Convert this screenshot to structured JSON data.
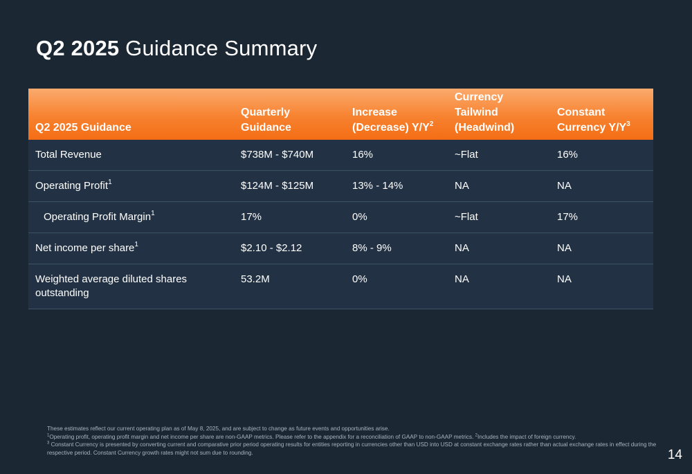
{
  "title": {
    "bold": "Q2 2025",
    "rest": " Guidance Summary"
  },
  "table": {
    "headers": [
      {
        "line1": "",
        "line2": "",
        "line3": "Q2 2025 Guidance",
        "sup": ""
      },
      {
        "line1": "",
        "line2": "Quarterly",
        "line3": "Guidance",
        "sup": ""
      },
      {
        "line1": "",
        "line2": "Increase",
        "line3": "(Decrease) Y/Y",
        "sup": "2"
      },
      {
        "line1": "Currency",
        "line2": "Tailwind",
        "line3": "(Headwind)",
        "sup": ""
      },
      {
        "line1": "",
        "line2": "Constant",
        "line3": "Currency Y/Y",
        "sup": "3"
      }
    ],
    "rows": [
      {
        "label": "Total Revenue",
        "label_sup": "",
        "guidance": "$738M - $740M",
        "change": "16%",
        "currency": "~Flat",
        "constant": "16%"
      },
      {
        "label": "Operating Profit",
        "label_sup": "1",
        "guidance": "$124M - $125M",
        "change": "13% - 14%",
        "currency": "NA",
        "constant": "NA"
      },
      {
        "label": "Operating Profit Margin",
        "label_sup": "1",
        "guidance": "17%",
        "change": "0%",
        "currency": "~Flat",
        "constant": "17%"
      },
      {
        "label": "Net income per share",
        "label_sup": "1",
        "guidance": "$2.10 - $2.12",
        "change": "8% - 9%",
        "currency": "NA",
        "constant": "NA"
      },
      {
        "label": "Weighted average diluted shares outstanding",
        "label_sup": "",
        "guidance": "53.2M",
        "change": "0%",
        "currency": "NA",
        "constant": "NA"
      }
    ]
  },
  "footnotes": {
    "intro": "These estimates reflect our current operating plan as of May 8, 2025, and are subject to change as future events and opportunities arise.",
    "note1_mark": "1",
    "note1": "Operating profit, operating profit margin and net income per share are non-GAAP metrics. Please refer to the appendix for a reconciliation of GAAP to non-GAAP metrics. ",
    "note2_mark": "2",
    "note2": "Includes the impact of foreign currency.",
    "note3_mark": "3",
    "note3": "Constant Currency is presented by converting current and comparative prior period operating results for entities reporting in currencies other than USD into USD at constant exchange rates rather than actual exchange rates in effect during the respective period. Constant Currency growth rates might not sum due to rounding."
  },
  "page_number": "14",
  "colors": {
    "background": "#1b2733",
    "header_orange": "#f7822f",
    "row_background": "#223244"
  }
}
